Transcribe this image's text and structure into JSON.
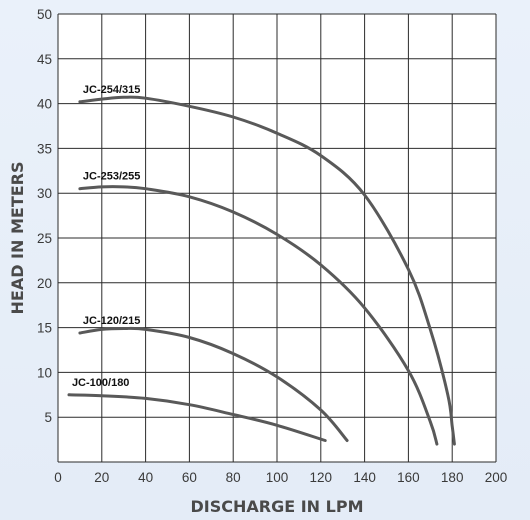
{
  "chart_data": {
    "type": "line",
    "xlabel": "DISCHARGE IN LPM",
    "ylabel": "HEAD IN METERS",
    "xlim": [
      0,
      200
    ],
    "ylim": [
      0,
      50
    ],
    "x_ticks": [
      "0",
      "20",
      "40",
      "60",
      "80",
      "100",
      "120",
      "140",
      "160",
      "180",
      "200"
    ],
    "y_ticks": [
      "5",
      "10",
      "15",
      "20",
      "25",
      "30",
      "35",
      "40",
      "45",
      "50"
    ],
    "grid": true,
    "series": [
      {
        "name": "JC-254/315",
        "x": [
          10,
          20,
          30,
          40,
          60,
          80,
          100,
          120,
          140,
          160,
          170,
          178,
          180,
          181
        ],
        "y": [
          40.2,
          40.5,
          40.7,
          40.6,
          39.7,
          38.5,
          36.7,
          34.2,
          29.8,
          21.5,
          14.8,
          7.5,
          4.0,
          2.0
        ]
      },
      {
        "name": "JC-253/255",
        "x": [
          10,
          20,
          30,
          40,
          60,
          80,
          100,
          120,
          140,
          160,
          170,
          173
        ],
        "y": [
          30.5,
          30.7,
          30.7,
          30.5,
          29.6,
          27.9,
          25.4,
          22.0,
          17.2,
          10.2,
          4.5,
          2.0
        ]
      },
      {
        "name": "JC-120/215",
        "x": [
          10,
          20,
          30,
          40,
          60,
          80,
          100,
          120,
          132
        ],
        "y": [
          14.4,
          14.8,
          14.9,
          14.8,
          13.9,
          12.1,
          9.5,
          5.8,
          2.4
        ]
      },
      {
        "name": "JC-100/180",
        "x": [
          5,
          20,
          40,
          60,
          80,
          100,
          122
        ],
        "y": [
          7.5,
          7.4,
          7.1,
          6.4,
          5.3,
          4.1,
          2.4
        ]
      }
    ]
  }
}
